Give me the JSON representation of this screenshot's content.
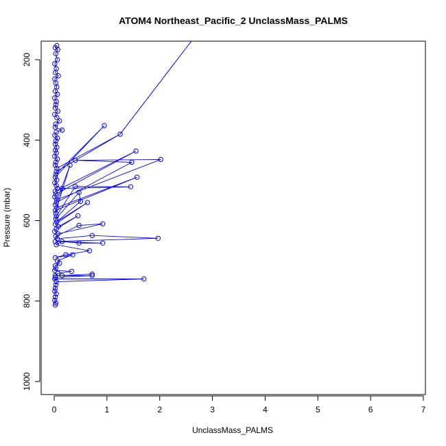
{
  "chart_data": {
    "type": "line",
    "title": "ATOM4 Northeast_Pacific_2 UnclassMass_PALMS",
    "xlabel": "UnclassMass_PALMS",
    "ylabel": "Pressure (mbar)",
    "xlim": [
      0,
      7
    ],
    "ylim": [
      1030,
      160
    ],
    "y_reversed": true,
    "xticks": [
      "0",
      "1",
      "2",
      "3",
      "4",
      "5",
      "6",
      "7"
    ],
    "yticks": [
      "200",
      "400",
      "600",
      "800",
      "1000"
    ],
    "marker": "open-circle",
    "line": true,
    "grid": false,
    "legend": "none",
    "series_color": "#0000ff",
    "series": [
      {
        "x": [
          0.05,
          0.02,
          0.07,
          0.03,
          0.06,
          0.01,
          0.04,
          0.02,
          0.08,
          0.01,
          0.03,
          0.05,
          0.02,
          0.06,
          0.01,
          0.04,
          0.03,
          0.02,
          0.07,
          0.01,
          0.05,
          0.1,
          0.03,
          0.02,
          0.15,
          0.04,
          0.01,
          0.06,
          0.03,
          0.02,
          0.05,
          0.02,
          0.04,
          0.01,
          0.06,
          0.03,
          0.02,
          0.05,
          1.25,
          0.04,
          0.03,
          0.95,
          0.02,
          0.05,
          0.01,
          0.04,
          0.06,
          0.02,
          1.55,
          0.03,
          0.01,
          0.05,
          2.02,
          0.4,
          1.47,
          0.04,
          0.02,
          0.3,
          0.05,
          1.57,
          0.02,
          0.03,
          0.15,
          1.45,
          0.4,
          0.04,
          0.03,
          0.47,
          0.5,
          0.05,
          0.63,
          0.02,
          0.08,
          0.45,
          0.04,
          0.01,
          0.07,
          0.92,
          0.47,
          0.03,
          0.06,
          0.72,
          1.97,
          0.02,
          0.92,
          0.47,
          0.15,
          0.04,
          0.67,
          0.22,
          0.02,
          0.35,
          0.06,
          0.1,
          0.02,
          0.03,
          0.01,
          0.33,
          0.07,
          0.02,
          0.72,
          0.15,
          0.72,
          0.02,
          0.01,
          1.7,
          0.04,
          0.03,
          0.02,
          0.01,
          0.04,
          0.02,
          0.01,
          0.03,
          0.02
        ],
        "y": [
          165,
          170,
          175,
          185,
          200,
          210,
          222,
          232,
          240,
          248,
          258,
          268,
          278,
          286,
          295,
          304,
          312,
          320,
          328,
          336,
          344,
          352,
          360,
          368,
          375,
          380,
          388,
          395,
          402,
          410,
          418,
          425,
          432,
          440,
          447,
          455,
          462,
          470,
          385,
          478,
          485,
          364,
          492,
          499,
          506,
          513,
          520,
          527,
          427,
          534,
          541,
          548,
          448,
          450,
          455,
          555,
          561,
          462,
          568,
          492,
          575,
          582,
          520,
          516,
          515,
          589,
          596,
          530,
          552,
          603,
          555,
          609,
          615,
          588,
          621,
          627,
          633,
          608,
          612,
          639,
          645,
          637,
          644,
          652,
          656,
          656,
          652,
          660,
          675,
          685,
          692,
          685,
          700,
          706,
          712,
          718,
          724,
          726,
          731,
          737,
          733,
          737,
          737,
          741,
          745,
          745,
          752,
          760,
          768,
          775,
          782,
          790,
          798,
          805,
          810
        ]
      }
    ]
  }
}
